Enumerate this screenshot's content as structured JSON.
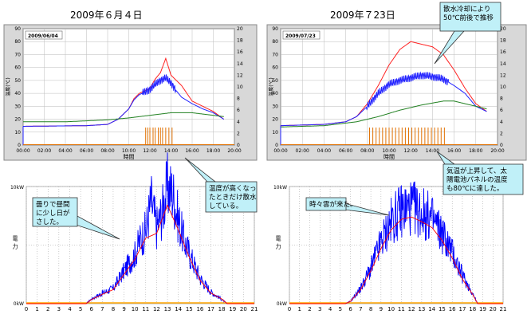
{
  "titles": {
    "left": "2009年６月４日",
    "right": "2009年７23日"
  },
  "callouts": {
    "spray": "散水冷却により\n50℃前後で推移",
    "spray_hot": "温度が高くなっ\nたときだけ散水\nしている。",
    "cloudy": "曇りで昼間\nに少し日が\nさした。",
    "clouds": "時々雲が来た。",
    "temp_rise": "気温が上昇して、太\n陽電池パネルの温度\nも80℃に達した。"
  },
  "colors": {
    "temp_red": "#ff2020",
    "temp_blue": "#2020ff",
    "temp_green": "#208020",
    "spray_bar": "#e07000",
    "power_blue": "#0000ff",
    "power_red": "#ff0000",
    "baseline": "#ffa500",
    "callout_fill": "#c0f0f8",
    "plot_bg": "#ffffff",
    "frame_bg": "#d8d8d8"
  },
  "chart_data": [
    {
      "type": "line",
      "date_label": "2009/06/04",
      "xlabel": "時間",
      "ylabel": "温度(℃)",
      "x_ticks": [
        "00:00",
        "02:00",
        "04:00",
        "06:00",
        "08:00",
        "10:00",
        "12:00",
        "14:00",
        "16:00",
        "18:00",
        "20:00"
      ],
      "y_ticks": [
        "0",
        "10",
        "20",
        "30",
        "40",
        "50",
        "60",
        "70",
        "80",
        "90"
      ],
      "y2_ticks": [
        "0",
        "2",
        "4",
        "6",
        "8",
        "10",
        "12",
        "14",
        "16",
        "18",
        "20"
      ],
      "xlim": [
        0,
        20
      ],
      "ylim": [
        0,
        90
      ],
      "y2lim": [
        0,
        20
      ],
      "series": [
        {
          "values": [
            [
              0,
              14.5
            ],
            [
              6,
              15
            ],
            [
              7,
              15.5
            ],
            [
              8,
              16
            ],
            [
              9,
              20
            ],
            [
              10,
              28
            ],
            [
              10.5,
              36
            ],
            [
              11,
              40
            ],
            [
              12,
              44
            ],
            [
              12.5,
              51
            ],
            [
              13,
              56
            ],
            [
              13.5,
              67
            ],
            [
              14,
              54
            ],
            [
              14.5,
              50
            ],
            [
              15,
              46
            ],
            [
              16,
              34
            ],
            [
              17,
              30
            ],
            [
              18,
              26
            ],
            [
              19,
              20
            ]
          ]
        },
        {
          "values": [
            [
              0,
              14.5
            ],
            [
              6,
              15
            ],
            [
              7,
              15.5
            ],
            [
              8,
              16
            ],
            [
              9,
              20
            ],
            [
              10,
              28
            ],
            [
              10.5,
              35
            ],
            [
              11,
              39
            ],
            [
              12,
              43
            ],
            [
              12.5,
              47
            ],
            [
              13,
              50
            ],
            [
              13.5,
              52
            ],
            [
              14,
              48
            ],
            [
              14.5,
              42
            ],
            [
              15,
              37
            ],
            [
              16,
              32
            ],
            [
              17,
              28
            ],
            [
              18,
              25
            ],
            [
              19,
              20
            ]
          ]
        },
        {
          "values": [
            [
              0,
              18
            ],
            [
              4,
              18
            ],
            [
              8,
              19.5
            ],
            [
              10,
              21
            ],
            [
              12,
              23
            ],
            [
              14,
              25
            ],
            [
              16,
              25
            ],
            [
              18,
              23
            ],
            [
              19,
              22
            ]
          ]
        }
      ],
      "spray_times": [
        11.6,
        11.8,
        12.0,
        12.3,
        12.5,
        12.8,
        13.0,
        13.2,
        13.5,
        13.8,
        14.1
      ]
    },
    {
      "type": "line",
      "date_label": "2009/07/23",
      "xlabel": "時間",
      "ylabel": "温度(℃)",
      "x_ticks": [
        "00:00",
        "02:00",
        "04:00",
        "06:00",
        "08:00",
        "10:00",
        "12:00",
        "14:00",
        "16:00",
        "18:00",
        "20:00"
      ],
      "y_ticks": [
        "0",
        "10",
        "20",
        "30",
        "40",
        "50",
        "60",
        "70",
        "80",
        "90"
      ],
      "y2_ticks": [
        "0",
        "2",
        "4",
        "6",
        "8",
        "10",
        "12",
        "14",
        "16",
        "18",
        "20"
      ],
      "xlim": [
        0,
        20
      ],
      "ylim": [
        0,
        90
      ],
      "y2lim": [
        0,
        20
      ],
      "series": [
        {
          "values": [
            [
              0,
              15
            ],
            [
              4,
              16
            ],
            [
              6,
              18
            ],
            [
              7,
              22
            ],
            [
              8,
              32
            ],
            [
              9,
              46
            ],
            [
              10,
              62
            ],
            [
              11,
              74
            ],
            [
              12,
              80
            ],
            [
              13,
              78
            ],
            [
              14,
              76
            ],
            [
              15,
              70
            ],
            [
              16,
              58
            ],
            [
              17,
              44
            ],
            [
              18,
              32
            ],
            [
              19,
              26
            ]
          ]
        },
        {
          "values": [
            [
              0,
              15
            ],
            [
              4,
              16
            ],
            [
              6,
              18
            ],
            [
              7,
              22
            ],
            [
              8,
              30
            ],
            [
              9,
              40
            ],
            [
              10,
              47
            ],
            [
              11,
              50
            ],
            [
              12,
              52
            ],
            [
              13,
              54
            ],
            [
              14,
              53
            ],
            [
              15,
              51
            ],
            [
              16,
              46
            ],
            [
              17,
              40
            ],
            [
              18,
              30
            ],
            [
              19,
              26
            ]
          ]
        },
        {
          "values": [
            [
              0,
              14
            ],
            [
              4,
              15
            ],
            [
              7,
              18
            ],
            [
              9,
              22
            ],
            [
              11,
              27
            ],
            [
              13,
              31
            ],
            [
              15,
              34
            ],
            [
              16,
              34
            ],
            [
              18,
              30
            ],
            [
              19,
              28
            ]
          ]
        }
      ],
      "spray_times": [
        8.2,
        8.5,
        8.8,
        9.1,
        9.4,
        9.7,
        10.0,
        10.3,
        10.6,
        10.9,
        11.2,
        11.5,
        11.8,
        12.1,
        12.4,
        12.7,
        13.0,
        13.3,
        13.6,
        13.9,
        14.2,
        14.5,
        14.8,
        15.1
      ]
    },
    {
      "type": "line",
      "ylabel": "電力",
      "x_ticks": [
        "0",
        "1",
        "2",
        "3",
        "4",
        "5",
        "6",
        "7",
        "8",
        "9",
        "10",
        "11",
        "12",
        "13",
        "14",
        "15",
        "16",
        "17",
        "18",
        "19",
        "20",
        "21"
      ],
      "y_ticks_text": [
        "0kW",
        "10kW"
      ],
      "xlim": [
        0,
        21
      ],
      "ylim": [
        0,
        10
      ],
      "series": [
        {
          "values": [
            [
              0,
              0
            ],
            [
              5.5,
              0
            ],
            [
              6,
              0.4
            ],
            [
              7,
              0.9
            ],
            [
              8,
              1.3
            ],
            [
              9,
              2.8
            ],
            [
              9.5,
              3.5
            ],
            [
              10,
              4.2
            ],
            [
              10.5,
              5.5
            ],
            [
              11,
              6.2
            ],
            [
              11.5,
              8.8
            ],
            [
              12,
              6.5
            ],
            [
              12.5,
              7.8
            ],
            [
              13,
              10
            ],
            [
              13.5,
              9.4
            ],
            [
              14,
              7.2
            ],
            [
              14.5,
              5.5
            ],
            [
              15,
              4.3
            ],
            [
              16,
              2.2
            ],
            [
              17,
              1.0
            ],
            [
              17.8,
              0.5
            ],
            [
              18.5,
              0
            ],
            [
              21,
              0
            ]
          ]
        },
        {
          "values": [
            [
              0,
              0
            ],
            [
              5.5,
              0
            ],
            [
              6,
              0.35
            ],
            [
              7,
              0.8
            ],
            [
              8,
              1.2
            ],
            [
              9,
              2.5
            ],
            [
              10,
              3.8
            ],
            [
              11,
              5.6
            ],
            [
              12,
              6.0
            ],
            [
              13,
              8.4
            ],
            [
              14,
              6.3
            ],
            [
              15,
              4.0
            ],
            [
              16,
              2.0
            ],
            [
              17,
              0.9
            ],
            [
              18,
              0.4
            ],
            [
              18.5,
              0
            ],
            [
              21,
              0
            ]
          ]
        }
      ]
    },
    {
      "type": "line",
      "ylabel": "電力",
      "x_ticks": [
        "0",
        "1",
        "2",
        "3",
        "4",
        "5",
        "6",
        "7",
        "8",
        "9",
        "10",
        "11",
        "12",
        "13",
        "14",
        "15",
        "16",
        "17",
        "18",
        "19",
        "20",
        "21"
      ],
      "y_ticks_text": [
        "0kW",
        "10kW"
      ],
      "xlim": [
        0,
        21
      ],
      "ylim": [
        0,
        10
      ],
      "series": [
        {
          "values": [
            [
              0,
              0
            ],
            [
              5.5,
              0
            ],
            [
              6,
              0.2
            ],
            [
              7,
              1.3
            ],
            [
              8,
              3.0
            ],
            [
              9,
              5.2
            ],
            [
              10,
              7.0
            ],
            [
              11,
              8.0
            ],
            [
              12,
              8.2
            ],
            [
              13,
              7.8
            ],
            [
              14,
              7.2
            ],
            [
              15,
              6.0
            ],
            [
              16,
              4.4
            ],
            [
              17,
              2.4
            ],
            [
              18,
              0.9
            ],
            [
              18.5,
              0
            ],
            [
              21,
              0
            ]
          ]
        },
        {
          "values": [
            [
              0,
              0
            ],
            [
              5.5,
              0
            ],
            [
              6,
              0.2
            ],
            [
              7,
              1.2
            ],
            [
              8,
              2.8
            ],
            [
              9,
              4.7
            ],
            [
              10,
              6.3
            ],
            [
              11,
              7.2
            ],
            [
              12,
              7.4
            ],
            [
              13,
              7.0
            ],
            [
              14,
              6.5
            ],
            [
              15,
              5.4
            ],
            [
              16,
              3.9
            ],
            [
              17,
              2.1
            ],
            [
              18,
              0.8
            ],
            [
              18.5,
              0
            ],
            [
              21,
              0
            ]
          ]
        }
      ]
    }
  ]
}
